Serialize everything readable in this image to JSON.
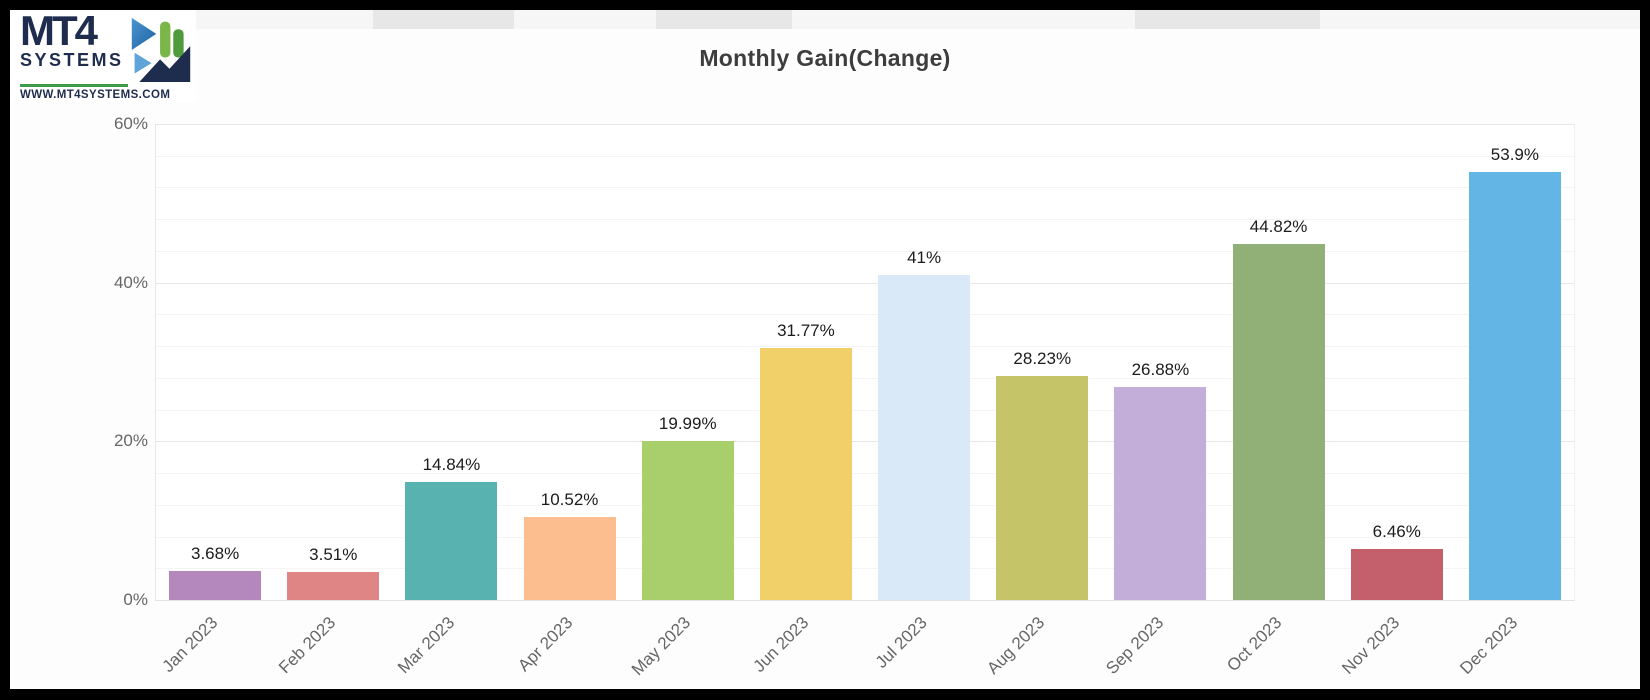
{
  "frame": {
    "color": "#000000"
  },
  "header": {
    "logo": {
      "brand": "MT4",
      "brand_sub": "SYSTEMS",
      "website": "WWW.MT4SYSTEMS.COM",
      "navy": "#1e2c4e",
      "green": "#3f9b47"
    },
    "tab_strip": {
      "background": "#f6f6f6",
      "block_color": "#e7e7e7"
    }
  },
  "chart_data": {
    "type": "bar",
    "title": "Monthly Gain(Change)",
    "categories": [
      "Jan 2023",
      "Feb 2023",
      "Mar 2023",
      "Apr 2023",
      "May 2023",
      "Jun 2023",
      "Jul 2023",
      "Aug 2023",
      "Sep 2023",
      "Oct 2023",
      "Nov 2023",
      "Dec 2023"
    ],
    "values": [
      3.68,
      3.51,
      14.84,
      10.52,
      19.99,
      31.77,
      41,
      28.23,
      26.88,
      44.82,
      6.46,
      53.9
    ],
    "value_labels": [
      "3.68%",
      "3.51%",
      "14.84%",
      "10.52%",
      "19.99%",
      "31.77%",
      "41%",
      "28.23%",
      "26.88%",
      "44.82%",
      "6.46%",
      "53.9%"
    ],
    "bar_colors": [
      "#b488bc",
      "#e08585",
      "#57b2b0",
      "#fcbe8e",
      "#a9cf6c",
      "#f1d069",
      "#d9e9f8",
      "#c6c468",
      "#c2aed8",
      "#90b077",
      "#c4606b",
      "#62b5e5"
    ],
    "xlabel": "",
    "ylabel": "",
    "ylim": [
      0,
      60
    ],
    "yticks": [
      "0%",
      "20%",
      "40%",
      "60%"
    ],
    "ytick_values": [
      0,
      20,
      40,
      60
    ],
    "y_major_step": 20,
    "y_minor_step": 4,
    "grid": true,
    "legend": "none",
    "title_color": "#3d3d3d",
    "axis_label_color": "#666666",
    "value_label_color": "#1c1c1c"
  }
}
